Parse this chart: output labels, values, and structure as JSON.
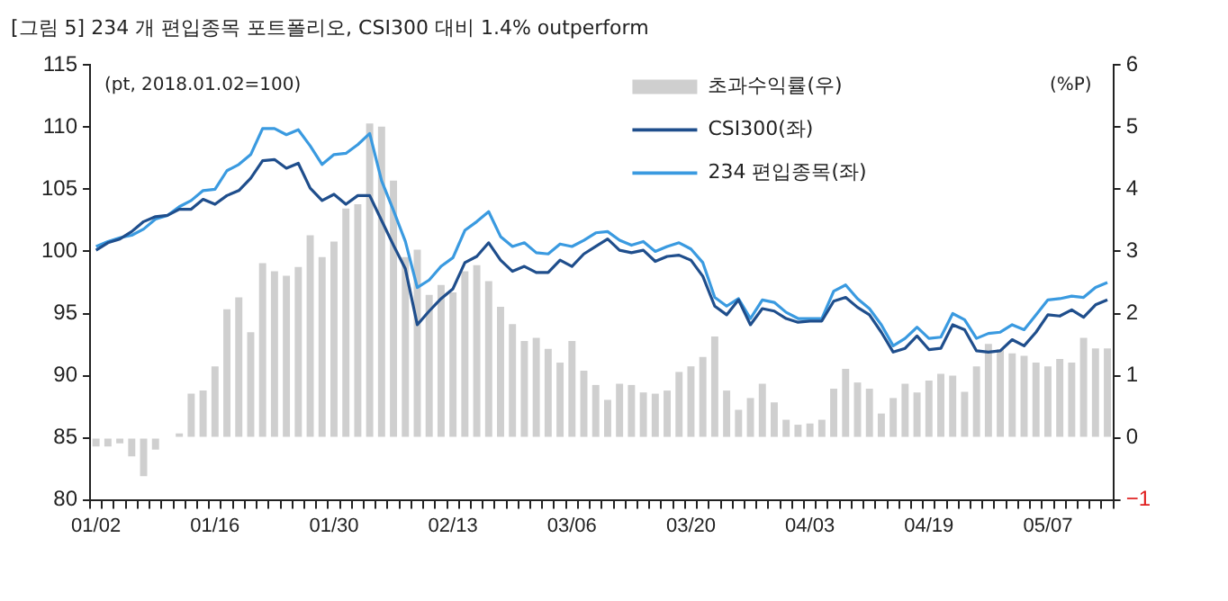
{
  "chart_data": {
    "type": "bar",
    "title": "[그림 5] 234 개 편입종목 포트폴리오, CSI300 대비 1.4% outperform",
    "ylabel": "(pt, 2018.01.02=100)",
    "y2label": "(%P)",
    "categories": [
      "01/02",
      null,
      null,
      null,
      null,
      null,
      null,
      null,
      null,
      null,
      "01/16",
      null,
      null,
      null,
      null,
      null,
      null,
      null,
      null,
      null,
      "01/30",
      null,
      null,
      null,
      null,
      null,
      null,
      null,
      null,
      null,
      "02/13",
      null,
      null,
      null,
      null,
      null,
      null,
      null,
      null,
      null,
      "03/06",
      null,
      null,
      null,
      null,
      null,
      null,
      null,
      null,
      null,
      "03/20",
      null,
      null,
      null,
      null,
      null,
      null,
      null,
      null,
      null,
      "04/03",
      null,
      null,
      null,
      null,
      null,
      null,
      null,
      null,
      null,
      "04/19",
      null,
      null,
      null,
      null,
      null,
      null,
      null,
      null,
      null,
      "05/07",
      null,
      null,
      null,
      null,
      null
    ],
    "series": [
      {
        "name": "초과수익률(우)",
        "axis": "y2",
        "color": "#cfcfcf",
        "values": [
          -0.14,
          -0.14,
          -0.09,
          -0.3,
          -0.62,
          -0.19,
          null,
          0.07,
          0.71,
          0.76,
          1.15,
          2.07,
          2.26,
          1.7,
          2.81,
          2.68,
          2.61,
          2.75,
          3.26,
          2.91,
          3.16,
          3.69,
          3.76,
          5.06,
          5.01,
          4.14,
          2.91,
          3.03,
          2.3,
          2.46,
          2.34,
          2.68,
          2.78,
          2.52,
          2.11,
          1.83,
          1.56,
          1.61,
          1.43,
          1.21,
          1.56,
          1.08,
          0.85,
          0.61,
          0.87,
          0.85,
          0.73,
          0.71,
          0.76,
          1.06,
          1.15,
          1.3,
          1.63,
          0.76,
          0.45,
          0.64,
          0.87,
          0.57,
          0.29,
          0.21,
          0.23,
          0.29,
          0.79,
          1.11,
          0.89,
          0.79,
          0.39,
          0.64,
          0.87,
          0.73,
          0.92,
          1.03,
          1.0,
          0.74,
          1.15,
          1.51,
          1.42,
          1.36,
          1.32,
          1.21,
          1.15,
          1.27,
          1.21,
          1.61,
          1.44,
          1.44
        ]
      },
      {
        "name": "CSI300(좌)",
        "type": "line",
        "color": "#1f4e8c",
        "values": [
          100.1,
          100.7,
          101.0,
          101.6,
          102.4,
          102.8,
          102.9,
          103.4,
          103.4,
          104.2,
          103.8,
          104.5,
          104.9,
          105.9,
          107.3,
          107.4,
          106.7,
          107.1,
          105.1,
          104.1,
          104.6,
          103.8,
          104.5,
          104.5,
          102.5,
          100.5,
          98.6,
          94.1,
          95.2,
          96.2,
          97.0,
          99.1,
          99.6,
          100.7,
          99.3,
          98.4,
          98.8,
          98.3,
          98.3,
          99.3,
          98.8,
          99.8,
          100.4,
          101.0,
          100.1,
          99.9,
          100.1,
          99.2,
          99.6,
          99.7,
          99.3,
          98.0,
          95.6,
          94.9,
          96.1,
          94.1,
          95.4,
          95.2,
          94.6,
          94.3,
          94.4,
          94.4,
          96.0,
          96.3,
          95.5,
          94.9,
          93.5,
          91.9,
          92.2,
          93.2,
          92.1,
          92.2,
          94.1,
          93.7,
          92.0,
          91.9,
          92.0,
          92.9,
          92.4,
          93.5,
          94.9,
          94.8,
          95.3,
          94.7,
          95.7,
          96.1
        ]
      },
      {
        "name": "234 편입종목(좌)",
        "type": "line",
        "color": "#3a9ae0",
        "values": [
          100.4,
          100.8,
          101.1,
          101.3,
          101.8,
          102.6,
          102.9,
          103.6,
          104.1,
          104.9,
          105.0,
          106.5,
          107.0,
          107.8,
          109.9,
          109.9,
          109.4,
          109.8,
          108.5,
          107.0,
          107.8,
          107.9,
          108.6,
          109.5,
          105.7,
          103.3,
          100.8,
          97.1,
          97.7,
          98.8,
          99.5,
          101.7,
          102.4,
          103.2,
          101.2,
          100.4,
          100.7,
          99.9,
          99.8,
          100.6,
          100.4,
          100.9,
          101.5,
          101.6,
          100.9,
          100.5,
          100.8,
          100.0,
          100.4,
          100.7,
          100.2,
          99.1,
          96.3,
          95.6,
          96.2,
          94.6,
          96.1,
          95.9,
          95.1,
          94.6,
          94.6,
          94.6,
          96.8,
          97.3,
          96.2,
          95.4,
          94.1,
          92.4,
          93.0,
          93.9,
          93.0,
          93.1,
          95.0,
          94.5,
          93.0,
          93.4,
          93.5,
          94.1,
          93.7,
          94.9,
          96.1,
          96.2,
          96.4,
          96.3,
          97.1,
          97.5
        ]
      }
    ],
    "ylim": [
      80,
      115
    ],
    "yticks": [
      80,
      85,
      90,
      95,
      100,
      105,
      110,
      115
    ],
    "y2lim": [
      -1,
      6
    ],
    "y2ticks": [
      -1,
      0,
      1,
      2,
      3,
      4,
      5,
      6
    ],
    "grid": false,
    "legend": "top right",
    "marker": "none",
    "line_style": "solid"
  }
}
